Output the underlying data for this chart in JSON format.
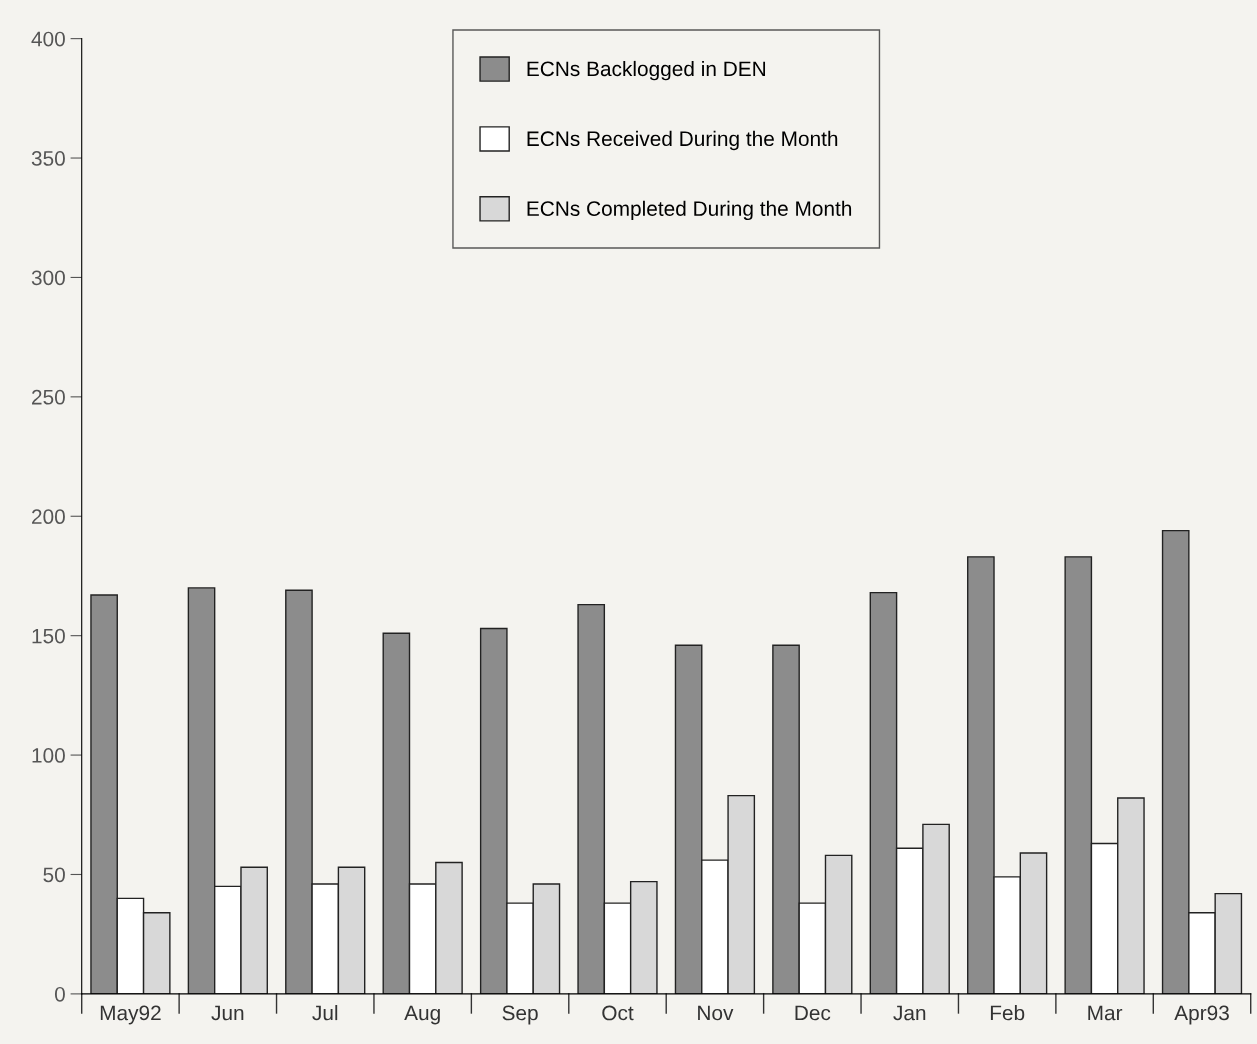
{
  "chart_data": {
    "type": "bar",
    "categories": [
      "May92",
      "Jun",
      "Jul",
      "Aug",
      "Sep",
      "Oct",
      "Nov",
      "Dec",
      "Jan",
      "Feb",
      "Mar",
      "Apr93"
    ],
    "series": [
      {
        "name": "ECNs Backlogged in DEN",
        "color": "#8c8c8c",
        "values": [
          167,
          170,
          169,
          151,
          153,
          163,
          146,
          146,
          168,
          183,
          183,
          194
        ]
      },
      {
        "name": "ECNs Received During the Month",
        "color": "#ffffff",
        "values": [
          40,
          45,
          46,
          46,
          38,
          38,
          56,
          38,
          61,
          49,
          63,
          34
        ]
      },
      {
        "name": "ECNs Completed During the Month",
        "color": "#d8d8d8",
        "values": [
          34,
          53,
          53,
          55,
          46,
          47,
          83,
          58,
          71,
          59,
          82,
          42
        ]
      }
    ],
    "ylim": [
      0,
      400
    ],
    "yticks": [
      0,
      50,
      100,
      150,
      200,
      250,
      300,
      350,
      400
    ],
    "grid": false,
    "legend": "top"
  }
}
